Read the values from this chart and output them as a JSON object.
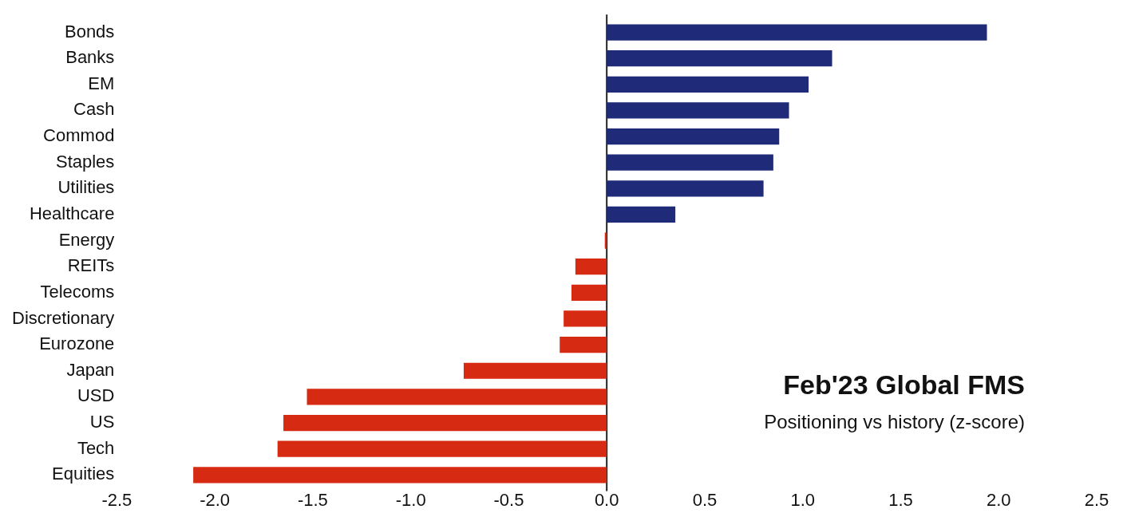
{
  "chart_data": {
    "type": "bar",
    "orientation": "horizontal",
    "title": "Feb'23 Global FMS",
    "subtitle": "Positioning vs history (z-score)",
    "categories": [
      "Bonds",
      "Banks",
      "EM",
      "Cash",
      "Commod",
      "Staples",
      "Utilities",
      "Healthcare",
      "Energy",
      "REITs",
      "Telecoms",
      "Discretionary",
      "Eurozone",
      "Japan",
      "USD",
      "US",
      "Tech",
      "Equities"
    ],
    "values": [
      1.94,
      1.15,
      1.03,
      0.93,
      0.88,
      0.85,
      0.8,
      0.35,
      -0.01,
      -0.16,
      -0.18,
      -0.22,
      -0.24,
      -0.73,
      -1.53,
      -1.65,
      -1.68,
      -2.11
    ],
    "colors": [
      "#1f2a78",
      "#1f2a78",
      "#1f2a78",
      "#1f2a78",
      "#1f2a78",
      "#1f2a78",
      "#1f2a78",
      "#1f2a78",
      "#d62a12",
      "#d62a12",
      "#d62a12",
      "#d62a12",
      "#d62a12",
      "#d62a12",
      "#d62a12",
      "#d62a12",
      "#d62a12",
      "#d62a12"
    ],
    "xlim": [
      -2.5,
      2.5
    ],
    "xticks": [
      {
        "value": -2.5,
        "label": "-2.5"
      },
      {
        "value": -2,
        "label": "-2.0"
      },
      {
        "value": -1.5,
        "label": "-1.5"
      },
      {
        "value": -1,
        "label": "-1.0"
      },
      {
        "value": -0.5,
        "label": "-0.5"
      },
      {
        "value": 0,
        "label": "0.0"
      },
      {
        "value": 0.5,
        "label": "0.5"
      },
      {
        "value": 1,
        "label": "1.0"
      },
      {
        "value": 1.5,
        "label": "1.5"
      },
      {
        "value": 2,
        "label": "2.0"
      },
      {
        "value": 2.5,
        "label": "2.5"
      }
    ],
    "ref_lines": [
      {
        "axis": "x",
        "value": 0,
        "color": "#222222"
      }
    ],
    "grid": false,
    "legend": false
  }
}
